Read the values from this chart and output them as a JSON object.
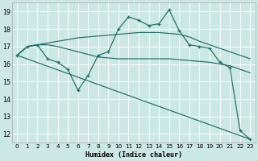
{
  "xlabel": "Humidex (Indice chaleur)",
  "bg_color": "#cce8e4",
  "grid_color": "#ffffff",
  "line_color": "#1a6e65",
  "xlim": [
    -0.5,
    23.5
  ],
  "ylim": [
    11.5,
    19.5
  ],
  "xticks": [
    0,
    1,
    2,
    3,
    4,
    5,
    6,
    7,
    8,
    9,
    10,
    11,
    12,
    13,
    14,
    15,
    16,
    17,
    18,
    19,
    20,
    21,
    22,
    23
  ],
  "yticks": [
    12,
    13,
    14,
    15,
    16,
    17,
    18,
    19
  ],
  "line_smooth1": {
    "x": [
      0,
      1,
      2,
      3,
      4,
      5,
      6,
      7,
      8,
      9,
      10,
      11,
      12,
      13,
      14,
      15,
      16,
      17,
      18,
      19,
      20,
      21,
      22,
      23
    ],
    "y": [
      16.5,
      17.0,
      17.1,
      17.2,
      17.3,
      17.4,
      17.5,
      17.55,
      17.6,
      17.65,
      17.7,
      17.75,
      17.8,
      17.8,
      17.8,
      17.75,
      17.7,
      17.55,
      17.3,
      17.1,
      16.9,
      16.7,
      16.5,
      16.3
    ]
  },
  "line_smooth2": {
    "x": [
      0,
      1,
      2,
      3,
      4,
      5,
      6,
      7,
      8,
      9,
      10,
      11,
      12,
      13,
      14,
      15,
      16,
      17,
      18,
      19,
      20,
      21,
      22,
      23
    ],
    "y": [
      16.5,
      17.0,
      17.1,
      17.1,
      17.0,
      16.85,
      16.7,
      16.55,
      16.4,
      16.35,
      16.3,
      16.3,
      16.3,
      16.3,
      16.3,
      16.3,
      16.25,
      16.2,
      16.15,
      16.1,
      16.0,
      15.9,
      15.7,
      15.5
    ]
  },
  "line_markers": {
    "x": [
      0,
      1,
      2,
      3,
      4,
      5,
      6,
      7,
      8,
      9,
      10,
      11,
      12,
      13,
      14,
      15,
      16,
      17,
      18,
      19,
      20,
      21,
      22,
      23
    ],
    "y": [
      16.5,
      17.0,
      17.1,
      16.3,
      16.1,
      15.7,
      14.5,
      15.35,
      16.5,
      16.7,
      18.0,
      18.7,
      18.5,
      18.2,
      18.3,
      19.1,
      17.9,
      17.1,
      17.0,
      16.9,
      16.1,
      15.8,
      12.2,
      11.7
    ]
  },
  "line_diagonal": {
    "x": [
      0,
      23
    ],
    "y": [
      16.5,
      11.7
    ]
  }
}
